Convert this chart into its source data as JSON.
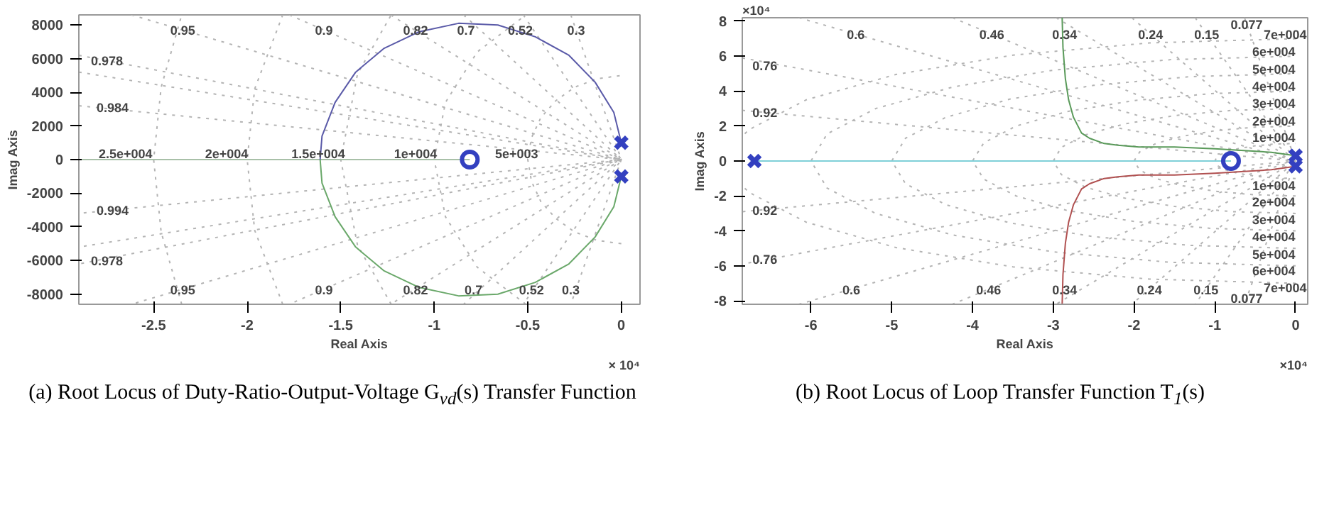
{
  "chart_data": [
    {
      "type": "line",
      "title": "(a) Root Locus of Duty-Ratio-Output-Voltage G$_{vd}$(s) Transfer Function",
      "xlabel": "Real Axis",
      "ylabel": "Imag Axis",
      "xlim": [
        -2.9,
        0.1
      ],
      "ylim": [
        -8600,
        8600
      ],
      "xticks": [
        -2.5,
        -2,
        -1.5,
        -1,
        -0.5,
        0
      ],
      "yticks": [
        -8000,
        -6000,
        -4000,
        -2000,
        0,
        2000,
        4000,
        6000,
        8000
      ],
      "series": [
        {
          "line_style": "dotted",
          "color": "#b4b4b4",
          "x": [
            -0.27,
            0,
            -0.27
          ],
          "values": [
            8600,
            0,
            -8600
          ]
        },
        {
          "line_style": "dotted",
          "color": "#b4b4b4",
          "x": [
            -0.524,
            0,
            -0.524
          ],
          "values": [
            8600,
            0,
            -8600
          ]
        },
        {
          "line_style": "dotted",
          "color": "#b4b4b4",
          "x": [
            -0.843,
            0,
            -0.843
          ],
          "values": [
            8600,
            0,
            -8600
          ]
        },
        {
          "line_style": "dotted",
          "color": "#b4b4b4",
          "x": [
            -1.233,
            0,
            -1.233
          ],
          "values": [
            8600,
            0,
            -8600
          ]
        },
        {
          "line_style": "dotted",
          "color": "#b4b4b4",
          "x": [
            -1.775,
            0,
            -1.775
          ],
          "values": [
            8600,
            0,
            -8600
          ]
        },
        {
          "line_style": "dotted",
          "color": "#b4b4b4",
          "x": [
            -2.619,
            0,
            -2.619
          ],
          "values": [
            8600,
            0,
            -8600
          ]
        },
        {
          "line_style": "dotted",
          "color": "#b4b4b4",
          "x": [
            -2.9,
            0,
            -2.9
          ],
          "values": [
            6200,
            0,
            -6200
          ]
        },
        {
          "line_style": "dotted",
          "color": "#b4b4b4",
          "x": [
            -2.9,
            0,
            -2.9
          ],
          "values": [
            5200,
            0,
            -5200
          ]
        },
        {
          "line_style": "dotted",
          "color": "#b4b4b4",
          "x": [
            -2.9,
            0,
            -2.9
          ],
          "values": [
            3200,
            0,
            -3200
          ]
        },
        {
          "line_style": "dotted",
          "color": "#b4b4b4",
          "x": [
            0,
            -0.13,
            -0.25,
            -0.35,
            -0.43,
            -0.48,
            -0.5,
            -0.48,
            -0.43,
            -0.35,
            -0.25,
            -0.13,
            0
          ],
          "values": [
            -5000,
            -4800,
            -4300,
            -3500,
            -2500,
            -1300,
            0,
            1300,
            2500,
            3500,
            4300,
            4800,
            5000
          ]
        },
        {
          "line_style": "dotted",
          "color": "#b4b4b4",
          "x": [
            -0.51,
            -0.77,
            -0.94,
            -1,
            -0.94,
            -0.77,
            -0.51
          ],
          "values": [
            -8600,
            -6400,
            -3400,
            0,
            3400,
            6400,
            8600
          ]
        },
        {
          "line_style": "dotted",
          "color": "#b4b4b4",
          "x": [
            -1.23,
            -1.41,
            -1.5,
            -1.41,
            -1.23
          ],
          "values": [
            -8600,
            -5100,
            0,
            5100,
            8600
          ]
        },
        {
          "line_style": "dotted",
          "color": "#b4b4b4",
          "x": [
            -1.81,
            -1.96,
            -2,
            -1.96,
            -1.81
          ],
          "values": [
            -8600,
            -4200,
            0,
            4200,
            8600
          ]
        },
        {
          "line_style": "dotted",
          "color": "#b4b4b4",
          "x": [
            -2.35,
            -2.46,
            -2.5,
            -2.46,
            -2.35
          ],
          "values": [
            -8600,
            -4300,
            0,
            4300,
            8600
          ]
        },
        {
          "color": "#a8c0a8",
          "x": [
            -2.9,
            -0.81
          ],
          "values": [
            0,
            0
          ]
        },
        {
          "color": "#5a5aa8",
          "x": [
            0,
            -0.04,
            -0.14,
            -0.28,
            -0.46,
            -0.66,
            -0.87,
            -1.08,
            -1.27,
            -1.42,
            -1.53,
            -1.6,
            -1.61
          ],
          "values": [
            1000,
            2800,
            4600,
            6200,
            7300,
            8000,
            8100,
            7600,
            6600,
            5200,
            3400,
            1400,
            0
          ]
        },
        {
          "color": "#6aa86a",
          "x": [
            0,
            -0.04,
            -0.14,
            -0.28,
            -0.46,
            -0.66,
            -0.87,
            -1.08,
            -1.27,
            -1.42,
            -1.53,
            -1.6,
            -1.61
          ],
          "values": [
            -1000,
            -2800,
            -4600,
            -6200,
            -7300,
            -8000,
            -8100,
            -7600,
            -6600,
            -5200,
            -3400,
            -1400,
            0
          ]
        },
        {
          "type": "scatter",
          "marker": "circle",
          "color": "#3340c0",
          "x": [
            -0.81
          ],
          "values": [
            0
          ]
        },
        {
          "type": "scatter",
          "marker": "cross",
          "color": "#3340c0",
          "x": [
            0,
            0
          ],
          "values": [
            1000,
            -1000
          ]
        }
      ],
      "annotations": [
        "× 10⁴",
        {
          "text": "0.95",
          "x": -2.345,
          "y": 7700
        },
        {
          "text": "0.9",
          "x": -1.59,
          "y": 7700
        },
        {
          "text": "0.82",
          "x": -1.1,
          "y": 7700
        },
        {
          "text": "0.7",
          "x": -0.83,
          "y": 7700
        },
        {
          "text": "0.52",
          "x": -0.54,
          "y": 7700
        },
        {
          "text": "0.3",
          "x": -0.242,
          "y": 7700
        },
        {
          "text": "0.978",
          "x": -2.75,
          "y": 5900
        },
        {
          "text": "0.984",
          "x": -2.72,
          "y": 3100
        },
        {
          "text": "0.994",
          "x": -2.72,
          "y": -3000
        },
        {
          "text": "0.978",
          "x": -2.75,
          "y": -6000
        },
        {
          "text": "2.5e+004",
          "x": -2.65,
          "y": 400
        },
        {
          "text": "2e+004",
          "x": -2.11,
          "y": 400
        },
        {
          "text": "1.5e+004",
          "x": -1.62,
          "y": 400
        },
        {
          "text": "1e+004",
          "x": -1.1,
          "y": 400
        },
        {
          "text": "5e+003",
          "x": -0.56,
          "y": 400
        },
        {
          "text": "0.95",
          "x": -2.345,
          "y": -7700
        },
        {
          "text": "0.9",
          "x": -1.59,
          "y": -7700
        },
        {
          "text": "0.82",
          "x": -1.1,
          "y": -7700
        },
        {
          "text": "0.7",
          "x": -0.79,
          "y": -7700
        },
        {
          "text": "0.52",
          "x": -0.48,
          "y": -7700
        },
        {
          "text": "0.3",
          "x": -0.27,
          "y": -7700
        }
      ]
    },
    {
      "type": "line",
      "title": "(b) Root Locus of Loop Transfer Function T$_{1}$(s)",
      "xlabel": "Real Axis",
      "ylabel": "Imag Axis",
      "xlim": [
        -6.85,
        0.15
      ],
      "ylim": [
        -8.2,
        8.2
      ],
      "xticks": [
        -6,
        -5,
        -4,
        -3,
        -2,
        -1,
        0
      ],
      "yticks": [
        -8,
        -6,
        -4,
        -2,
        0,
        2,
        4,
        6,
        8
      ],
      "series": [
        {
          "line_style": "dotted",
          "color": "#b4b4b4",
          "x": [
            -0.633,
            0,
            -0.633
          ],
          "values": [
            8.2,
            0,
            -8.2
          ]
        },
        {
          "line_style": "dotted",
          "color": "#b4b4b4",
          "x": [
            -1.244,
            0,
            -1.244
          ],
          "values": [
            8.2,
            0,
            -8.2
          ]
        },
        {
          "line_style": "dotted",
          "color": "#b4b4b4",
          "x": [
            -2.027,
            0,
            -2.027
          ],
          "values": [
            8.2,
            0,
            -8.2
          ]
        },
        {
          "line_style": "dotted",
          "color": "#b4b4b4",
          "x": [
            -2.965,
            0,
            -2.965
          ],
          "values": [
            8.2,
            0,
            -8.2
          ]
        },
        {
          "line_style": "dotted",
          "color": "#b4b4b4",
          "x": [
            -4.248,
            0,
            -4.248
          ],
          "values": [
            8.2,
            0,
            -8.2
          ]
        },
        {
          "line_style": "dotted",
          "color": "#b4b4b4",
          "x": [
            -6.15,
            0,
            -6.15
          ],
          "values": [
            8.2,
            0,
            -8.2
          ]
        },
        {
          "line_style": "dotted",
          "color": "#b4b4b4",
          "x": [
            -6.85,
            0,
            -6.85
          ],
          "values": [
            5.9,
            0,
            -5.9
          ]
        },
        {
          "line_style": "dotted",
          "color": "#b4b4b4",
          "x": [
            -6.85,
            0,
            -6.85
          ],
          "values": [
            2.9,
            0,
            -2.9
          ]
        },
        {
          "line_style": "dotted",
          "color": "#b4b4b4",
          "x": [
            0,
            -0.26,
            -0.5,
            -0.71,
            -0.87,
            -0.97,
            -1,
            -0.97,
            -0.87,
            -0.71,
            -0.5,
            -0.26,
            0
          ],
          "values": [
            -1,
            -0.97,
            -0.87,
            -0.71,
            -0.5,
            -0.26,
            0,
            0.26,
            0.5,
            0.71,
            0.87,
            0.97,
            1
          ]
        },
        {
          "line_style": "dotted",
          "color": "#b4b4b4",
          "x": [
            0,
            -0.52,
            -1,
            -1.41,
            -1.73,
            -1.93,
            -2,
            -1.93,
            -1.73,
            -1.41,
            -1,
            -0.52,
            0
          ],
          "values": [
            -2,
            -1.93,
            -1.73,
            -1.41,
            -1,
            -0.52,
            0,
            0.52,
            1,
            1.41,
            1.73,
            1.93,
            2
          ]
        },
        {
          "line_style": "dotted",
          "color": "#b4b4b4",
          "x": [
            0,
            -0.78,
            -1.5,
            -2.12,
            -2.6,
            -2.9,
            -3,
            -2.9,
            -2.6,
            -2.12,
            -1.5,
            -0.78,
            0
          ],
          "values": [
            -3,
            -2.9,
            -2.6,
            -2.12,
            -1.5,
            -0.78,
            0,
            0.78,
            1.5,
            2.12,
            2.6,
            2.9,
            3
          ]
        },
        {
          "line_style": "dotted",
          "color": "#b4b4b4",
          "x": [
            0,
            -1.04,
            -2,
            -2.83,
            -3.46,
            -3.86,
            -4,
            -3.86,
            -3.46,
            -2.83,
            -2,
            -1.04,
            0
          ],
          "values": [
            -4,
            -3.86,
            -3.46,
            -2.83,
            -2,
            -1.04,
            0,
            1.04,
            2,
            2.83,
            3.46,
            3.86,
            4
          ]
        },
        {
          "line_style": "dotted",
          "color": "#b4b4b4",
          "x": [
            0,
            -1.3,
            -2.5,
            -3.54,
            -4.33,
            -4.83,
            -5,
            -4.83,
            -4.33,
            -3.54,
            -2.5,
            -1.3,
            0
          ],
          "values": [
            -5,
            -4.83,
            -4.33,
            -3.54,
            -2.5,
            -1.3,
            0,
            1.3,
            2.5,
            3.54,
            4.33,
            4.83,
            5
          ]
        },
        {
          "line_style": "dotted",
          "color": "#b4b4b4",
          "x": [
            0,
            -1.55,
            -3,
            -4.24,
            -5.2,
            -5.8,
            -6,
            -5.8,
            -5.2,
            -4.24,
            -3,
            -1.55,
            0
          ],
          "values": [
            -6,
            -5.8,
            -5.2,
            -4.24,
            -3,
            -1.55,
            0,
            1.55,
            3,
            4.24,
            5.2,
            5.8,
            6
          ]
        },
        {
          "line_style": "dotted",
          "color": "#b4b4b4",
          "x": [
            0,
            -1.81,
            -3.5,
            -4.95,
            -6.06,
            -6.76,
            -6.85
          ],
          "values": [
            7,
            6.76,
            6.06,
            4.95,
            3.5,
            1.81,
            1.44
          ]
        },
        {
          "line_style": "dotted",
          "color": "#b4b4b4",
          "x": [
            0,
            -1.81,
            -3.5,
            -4.95,
            -6.06,
            -6.76,
            -6.85
          ],
          "values": [
            -7,
            -6.76,
            -6.06,
            -4.95,
            -3.5,
            -1.81,
            -1.44
          ]
        },
        {
          "color": "#7fd0d8",
          "x": [
            -6.7,
            -0.8
          ],
          "values": [
            0,
            0
          ]
        },
        {
          "color": "#5a9a5a",
          "x": [
            0,
            -0.3,
            -1,
            -1.5,
            -1.94,
            -2.2,
            -2.37,
            -2.55,
            -2.65,
            -2.75,
            -2.81,
            -2.85,
            -2.88,
            -2.89
          ],
          "values": [
            0.3,
            0.5,
            0.7,
            0.8,
            0.8,
            0.9,
            1,
            1.3,
            1.6,
            2.5,
            3.5,
            4.7,
            6.5,
            8.2
          ]
        },
        {
          "color": "#b05050",
          "x": [
            0,
            -0.3,
            -1,
            -1.5,
            -1.94,
            -2.2,
            -2.37,
            -2.55,
            -2.65,
            -2.75,
            -2.81,
            -2.85,
            -2.88,
            -2.89
          ],
          "values": [
            -0.3,
            -0.5,
            -0.7,
            -0.8,
            -0.8,
            -0.9,
            -1,
            -1.3,
            -1.6,
            -2.5,
            -3.5,
            -4.7,
            -6.5,
            -8.2
          ]
        },
        {
          "type": "scatter",
          "marker": "circle",
          "color": "#3340c0",
          "x": [
            -0.8
          ],
          "values": [
            0
          ]
        },
        {
          "type": "scatter",
          "marker": "cross",
          "color": "#3340c0",
          "x": [
            -6.7,
            0,
            0
          ],
          "values": [
            0,
            0.3,
            -0.3
          ]
        }
      ],
      "annotations": [
        "×10⁴",
        "×10⁴",
        {
          "text": "0.6",
          "x": -5.445,
          "y": 7.26
        },
        {
          "text": "0.46",
          "x": -3.761,
          "y": 7.26
        },
        {
          "text": "0.34",
          "x": -2.86,
          "y": 7.26
        },
        {
          "text": "0.24",
          "x": -1.795,
          "y": 7.26
        },
        {
          "text": "0.15",
          "x": -1.101,
          "y": 7.26
        },
        {
          "text": "0.077",
          "x": -0.606,
          "y": 7.85
        },
        {
          "text": "7e+004",
          "x": -0.13,
          "y": 7.26
        },
        {
          "text": "6e+004",
          "x": -0.27,
          "y": 6.29
        },
        {
          "text": "5e+004",
          "x": -0.27,
          "y": 5.29
        },
        {
          "text": "4e+004",
          "x": -0.27,
          "y": 4.29
        },
        {
          "text": "3e+004",
          "x": -0.27,
          "y": 3.31
        },
        {
          "text": "2e+004",
          "x": -0.27,
          "y": 2.31
        },
        {
          "text": "1e+004",
          "x": -0.27,
          "y": 1.36
        },
        {
          "text": "1e+004",
          "x": -0.27,
          "y": -1.38
        },
        {
          "text": "2e+004",
          "x": -0.27,
          "y": -2.33
        },
        {
          "text": "3e+004",
          "x": -0.27,
          "y": -3.33
        },
        {
          "text": "4e+004",
          "x": -0.27,
          "y": -4.31
        },
        {
          "text": "5e+004",
          "x": -0.27,
          "y": -5.31
        },
        {
          "text": "6e+004",
          "x": -0.27,
          "y": -6.26
        },
        {
          "text": "7e+004",
          "x": -0.13,
          "y": -7.21
        },
        {
          "text": "0.76",
          "x": -6.57,
          "y": 5.5
        },
        {
          "text": "0.92",
          "x": -6.57,
          "y": 2.79
        },
        {
          "text": "0.92",
          "x": -6.57,
          "y": -2.81
        },
        {
          "text": "0.76",
          "x": -6.57,
          "y": -5.6
        },
        {
          "text": "0.6",
          "x": -5.5,
          "y": -7.33
        },
        {
          "text": "0.46",
          "x": -3.8,
          "y": -7.33
        },
        {
          "text": "0.34",
          "x": -2.86,
          "y": -7.33
        },
        {
          "text": "0.24",
          "x": -1.81,
          "y": -7.33
        },
        {
          "text": "0.15",
          "x": -1.11,
          "y": -7.33
        },
        {
          "text": "0.077",
          "x": -0.606,
          "y": -7.85
        }
      ]
    }
  ]
}
